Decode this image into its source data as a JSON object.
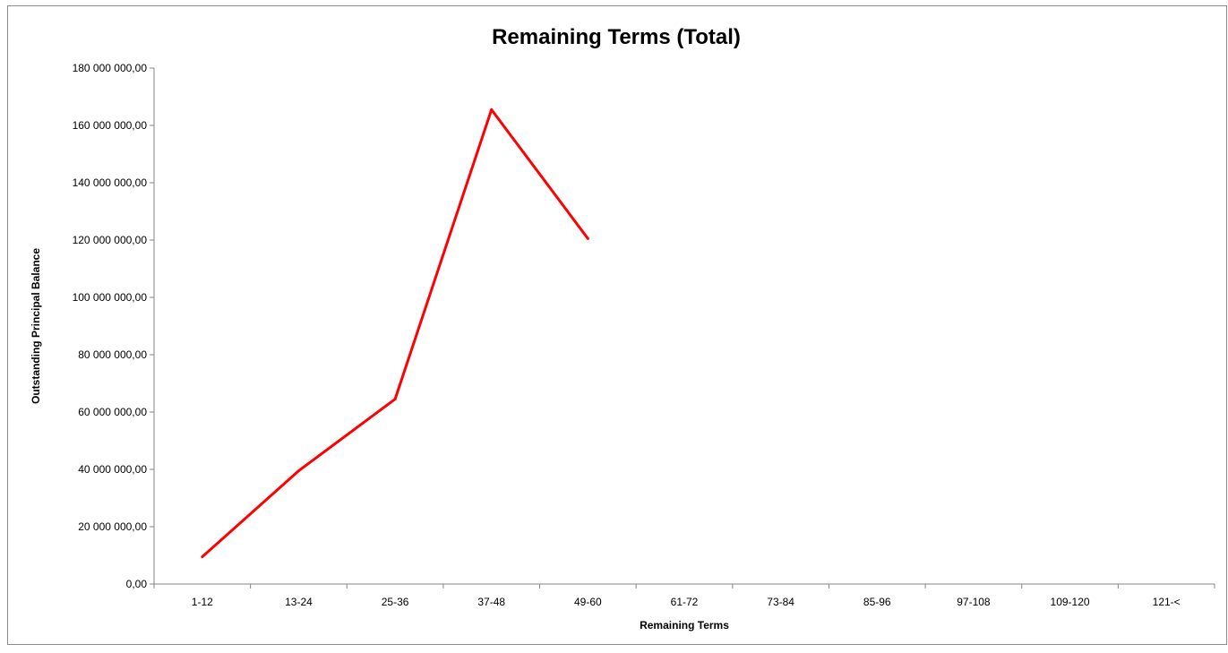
{
  "chart_data": {
    "type": "line",
    "title": "Remaining Terms (Total)",
    "xlabel": "Remaining Terms",
    "ylabel": "Outstanding Principal Balance",
    "categories": [
      "1-12",
      "13-24",
      "25-36",
      "37-48",
      "49-60",
      "61-72",
      "73-84",
      "85-96",
      "97-108",
      "109-120",
      "121-<"
    ],
    "series": [
      {
        "values": [
          9500000,
          39500000,
          64500000,
          165500000,
          120500000,
          null,
          null,
          null,
          null,
          null,
          null
        ],
        "color": "#ff0000"
      }
    ],
    "ylim": [
      0,
      180000000
    ],
    "yticks": [
      0,
      20000000,
      40000000,
      60000000,
      80000000,
      100000000,
      120000000,
      140000000,
      160000000,
      180000000
    ],
    "ytick_labels": [
      "0,00",
      "20 000 000,00",
      "40 000 000,00",
      "60 000 000,00",
      "80 000 000,00",
      "100 000 000,00",
      "120 000 000,00",
      "140 000 000,00",
      "160 000 000,00",
      "180 000 000,00"
    ],
    "grid": false,
    "legend": "none"
  }
}
